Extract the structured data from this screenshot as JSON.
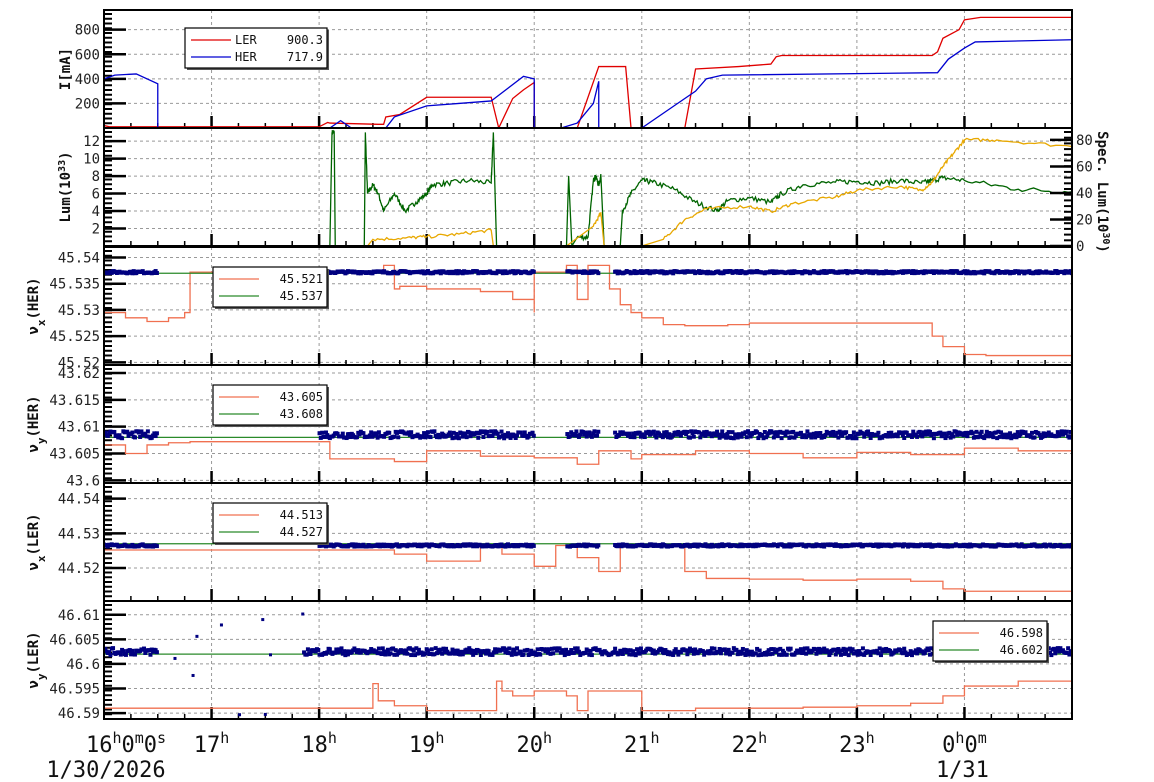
{
  "figure": {
    "x_axis": {
      "ticks": [
        {
          "hour": 16,
          "label_main": "16",
          "label_parts": [
            [
              "16",
              "h"
            ],
            [
              "0",
              "m"
            ],
            [
              "0",
              "s"
            ]
          ],
          "sub": "1/30/2026"
        },
        {
          "hour": 17,
          "label_parts": [
            [
              "17",
              "h"
            ]
          ]
        },
        {
          "hour": 18,
          "label_parts": [
            [
              "18",
              "h"
            ]
          ]
        },
        {
          "hour": 19,
          "label_parts": [
            [
              "19",
              "h"
            ]
          ]
        },
        {
          "hour": 20,
          "label_parts": [
            [
              "20",
              "h"
            ]
          ]
        },
        {
          "hour": 21,
          "label_parts": [
            [
              "21",
              "h"
            ]
          ]
        },
        {
          "hour": 22,
          "label_parts": [
            [
              "22",
              "h"
            ]
          ]
        },
        {
          "hour": 23,
          "label_parts": [
            [
              "23",
              "h"
            ]
          ]
        },
        {
          "hour": 24,
          "label_parts": [
            [
              "0",
              "h"
            ],
            [
              "0",
              "m"
            ]
          ],
          "sub": "1/31"
        }
      ],
      "start_label_date": "1/30/2026",
      "midnight_label_date": "1/31"
    }
  },
  "chart_data": [
    {
      "type": "line",
      "panel": "beam-current",
      "ylabel": "I[mA]",
      "ylim": [
        0,
        960
      ],
      "yticks": [
        200,
        400,
        600,
        800
      ],
      "x_unit": "hours since 16:00 1/30/2026",
      "xlim": [
        0,
        9
      ],
      "legend": [
        {
          "name": "LER",
          "value": "900.3",
          "color": "#e00000"
        },
        {
          "name": "HER",
          "value": "717.9",
          "color": "#0000d0"
        }
      ],
      "series": [
        {
          "name": "LER",
          "color": "#e00000",
          "x": [
            0,
            0.05,
            1.6,
            2.0,
            2.08,
            2.1,
            2.55,
            2.6,
            2.62,
            2.75,
            3.0,
            3.25,
            3.6,
            3.6,
            3.67,
            3.8,
            3.9,
            4.0,
            4.0,
            4.4,
            4.6,
            4.85,
            4.9,
            5.4,
            5.5,
            5.9,
            6.2,
            6.25,
            6.3,
            7.7,
            7.75,
            7.8,
            7.95,
            8.0,
            8.15,
            9.0
          ],
          "y": [
            20,
            10,
            10,
            10,
            45,
            40,
            30,
            30,
            90,
            110,
            250,
            250,
            250,
            250,
            0,
            240,
            310,
            370,
            0,
            0,
            500,
            500,
            0,
            0,
            480,
            500,
            520,
            580,
            590,
            590,
            620,
            730,
            800,
            880,
            900,
            900
          ]
        },
        {
          "name": "HER",
          "color": "#0000d0",
          "x": [
            0,
            0.1,
            0.3,
            0.5,
            0.5,
            2.0,
            2.1,
            2.2,
            2.3,
            2.55,
            2.62,
            2.7,
            3.0,
            3.3,
            3.6,
            3.9,
            4.0,
            4.0,
            4.25,
            4.4,
            4.55,
            4.6,
            4.6,
            4.85,
            5.0,
            5.3,
            5.5,
            5.6,
            5.75,
            7.75,
            7.85,
            8.0,
            8.1,
            9.0
          ],
          "y": [
            400,
            430,
            440,
            360,
            0,
            0,
            0,
            60,
            0,
            0,
            0,
            90,
            180,
            200,
            220,
            420,
            400,
            0,
            0,
            40,
            200,
            380,
            0,
            0,
            0,
            180,
            300,
            400,
            430,
            450,
            560,
            650,
            700,
            718
          ]
        }
      ]
    },
    {
      "type": "line",
      "panel": "luminosity",
      "ylabel": "Lum(10^33)",
      "ylabel_right": "Spec. Lum(10^30)",
      "ylim": [
        0,
        13.5
      ],
      "yticks": [
        2,
        4,
        6,
        8,
        10,
        12
      ],
      "y2lim": [
        0,
        89
      ],
      "y2ticks": [
        0,
        20,
        40,
        60,
        80
      ],
      "xlim": [
        0,
        9
      ],
      "series": [
        {
          "name": "Luminosity",
          "axis": "left",
          "color": "#006400",
          "x": [
            0,
            2.1,
            2.12,
            2.14,
            2.15,
            2.42,
            2.43,
            2.45,
            2.5,
            2.55,
            2.6,
            2.7,
            2.8,
            2.9,
            3.0,
            3.05,
            3.2,
            3.4,
            3.6,
            3.62,
            3.65,
            4.0,
            4.3,
            4.32,
            4.35,
            4.4,
            4.5,
            4.55,
            4.57,
            4.6,
            4.62,
            4.65,
            4.8,
            4.82,
            4.9,
            5.0,
            5.1,
            5.3,
            5.5,
            5.7,
            5.8,
            6.0,
            6.2,
            6.3,
            6.5,
            6.8,
            7.0,
            7.2,
            7.4,
            7.6,
            7.7,
            7.8,
            8.0,
            8.5,
            9.0
          ],
          "y": [
            0,
            0,
            13,
            13,
            0,
            0,
            13,
            6,
            7,
            6,
            4,
            6,
            4,
            5,
            6,
            7,
            7.2,
            7.5,
            7.2,
            13,
            0,
            0,
            0,
            8,
            0,
            1,
            1,
            7.5,
            8,
            7,
            8,
            0,
            0,
            4,
            6,
            7.5,
            7.3,
            6.5,
            5,
            4,
            5.2,
            5.5,
            5,
            6,
            7,
            7.3,
            7.4,
            7.2,
            7.5,
            7.2,
            7.5,
            7.8,
            7.5,
            6.5,
            6.2
          ]
        },
        {
          "name": "Specific Luminosity",
          "axis": "right",
          "color": "#e8a800",
          "x": [
            0,
            2.45,
            2.5,
            2.8,
            3.0,
            3.3,
            3.6,
            3.62,
            4.0,
            4.3,
            4.55,
            4.62,
            4.65,
            5.0,
            5.2,
            5.4,
            5.6,
            6.0,
            6.2,
            6.4,
            6.8,
            7.0,
            7.4,
            7.6,
            7.7,
            7.8,
            7.9,
            8.0,
            8.3,
            9.0
          ],
          "y": [
            0,
            0,
            5,
            6,
            7,
            9,
            12,
            0,
            0,
            0,
            15,
            25,
            0,
            0,
            5,
            20,
            28,
            30,
            26,
            32,
            37,
            42,
            45,
            42,
            48,
            60,
            70,
            80,
            80,
            75
          ]
        }
      ]
    },
    {
      "type": "scatter+step",
      "panel": "nux-her",
      "ylabel": "ν_x(HER)",
      "ylim": [
        45.5195,
        45.542
      ],
      "yticks": [
        45.52,
        45.525,
        45.53,
        45.535,
        45.54
      ],
      "xlim": [
        0,
        9
      ],
      "legend": [
        {
          "name": "set",
          "value": "45.521",
          "color": "#f07050"
        },
        {
          "name": "ref",
          "value": "45.537",
          "color": "#2a8a2a"
        }
      ],
      "reference_line": 45.537,
      "measured_mean": 45.5372,
      "step_series": {
        "color": "#f07050",
        "x": [
          0,
          0.2,
          0.4,
          0.6,
          0.75,
          0.8,
          0.9,
          0.95,
          1.0,
          1.1,
          1.6,
          2.0,
          2.6,
          2.7,
          2.75,
          3.0,
          3.5,
          3.8,
          4.0,
          4.0,
          4.3,
          4.4,
          4.5,
          4.6,
          4.7,
          4.8,
          4.9,
          5.0,
          5.2,
          5.4,
          5.8,
          6.0,
          7.0,
          7.5,
          7.7,
          7.8,
          8.0,
          8.2,
          9.0
        ],
        "y": [
          45.5295,
          45.5285,
          45.5278,
          45.5285,
          45.5295,
          45.5372,
          45.5372,
          45.5372,
          45.5372,
          45.5372,
          45.5372,
          45.5372,
          45.5385,
          45.534,
          45.5345,
          45.534,
          45.5335,
          45.532,
          45.5295,
          45.5372,
          45.5385,
          45.532,
          45.5385,
          45.5385,
          45.534,
          45.531,
          45.5295,
          45.5285,
          45.5272,
          45.527,
          45.5272,
          45.5275,
          45.5275,
          45.5275,
          45.525,
          45.523,
          45.5215,
          45.5213,
          45.5213
        ]
      }
    },
    {
      "type": "scatter+step",
      "panel": "nuy-her",
      "ylabel": "ν_y(HER)",
      "ylim": [
        43.5995,
        43.6215
      ],
      "yticks": [
        43.6,
        43.605,
        43.61,
        43.615,
        43.62
      ],
      "xlim": [
        0,
        9
      ],
      "legend": [
        {
          "name": "set",
          "value": "43.605",
          "color": "#f07050"
        },
        {
          "name": "ref",
          "value": "43.608",
          "color": "#2a8a2a"
        }
      ],
      "reference_line": 43.608,
      "measured_mean": 43.6085,
      "step_series": {
        "color": "#f07050",
        "x": [
          0,
          0.2,
          0.4,
          0.6,
          0.8,
          1.2,
          2.0,
          2.1,
          2.7,
          3.0,
          3.5,
          4.0,
          4.4,
          4.6,
          4.9,
          5.0,
          5.5,
          6.0,
          6.5,
          7.0,
          7.5,
          8.0,
          8.5,
          9.0
        ],
        "y": [
          43.6066,
          43.605,
          43.6066,
          43.607,
          43.6072,
          43.6072,
          43.6072,
          43.604,
          43.6035,
          43.6055,
          43.6045,
          43.6042,
          43.603,
          43.6055,
          43.604,
          43.6048,
          43.6055,
          43.605,
          43.6042,
          43.6052,
          43.6048,
          43.606,
          43.6055,
          43.6055
        ]
      }
    },
    {
      "type": "scatter+step",
      "panel": "nux-ler",
      "ylabel": "ν_x(LER)",
      "ylim": [
        44.5105,
        44.5445
      ],
      "yticks": [
        44.52,
        44.53,
        44.54
      ],
      "xlim": [
        0,
        9
      ],
      "legend": [
        {
          "name": "set",
          "value": "44.513",
          "color": "#f07050"
        },
        {
          "name": "ref",
          "value": "44.527",
          "color": "#2a8a2a"
        }
      ],
      "reference_line": 44.527,
      "measured_mean": 44.5265,
      "step_series": {
        "color": "#f07050",
        "x": [
          0,
          2.5,
          2.7,
          3.0,
          3.4,
          3.5,
          3.7,
          4.0,
          4.2,
          4.4,
          4.6,
          4.8,
          5.0,
          5.4,
          5.6,
          6.0,
          6.5,
          7.0,
          7.5,
          7.8,
          8.0,
          8.5,
          9.0
        ],
        "y": [
          44.5252,
          44.5252,
          44.524,
          44.522,
          44.522,
          44.5265,
          44.524,
          44.5205,
          44.5265,
          44.523,
          44.519,
          44.5265,
          44.5265,
          44.519,
          44.517,
          44.5168,
          44.5165,
          44.5168,
          44.5162,
          44.514,
          44.5133,
          44.5133,
          44.5133
        ]
      }
    },
    {
      "type": "scatter+step",
      "panel": "nuy-ler",
      "ylabel": "ν_y(LER)",
      "ylim": [
        46.5888,
        46.6128
      ],
      "yticks": [
        46.59,
        46.595,
        46.6,
        46.605,
        46.61
      ],
      "xlim": [
        0,
        9
      ],
      "legend": [
        {
          "name": "set",
          "value": "46.598",
          "color": "#f07050"
        },
        {
          "name": "ref",
          "value": "46.602",
          "color": "#2a8a2a"
        }
      ],
      "reference_line": 46.602,
      "measured_mean": 46.6025,
      "step_series": {
        "color": "#f07050",
        "x": [
          0,
          2.45,
          2.5,
          2.55,
          2.7,
          3.0,
          3.5,
          3.65,
          3.7,
          3.8,
          4.0,
          4.3,
          4.4,
          4.5,
          4.8,
          5.0,
          5.5,
          6.0,
          6.5,
          7.0,
          7.5,
          7.8,
          8.0,
          8.5,
          9.0
        ],
        "y": [
          46.591,
          46.591,
          46.596,
          46.5925,
          46.5915,
          46.5905,
          46.5905,
          46.5965,
          46.5945,
          46.5935,
          46.5945,
          46.5935,
          46.5905,
          46.5945,
          46.5945,
          46.5905,
          46.591,
          46.591,
          46.5912,
          46.5915,
          46.592,
          46.5935,
          46.5955,
          46.5965,
          46.5975
        ]
      }
    }
  ]
}
